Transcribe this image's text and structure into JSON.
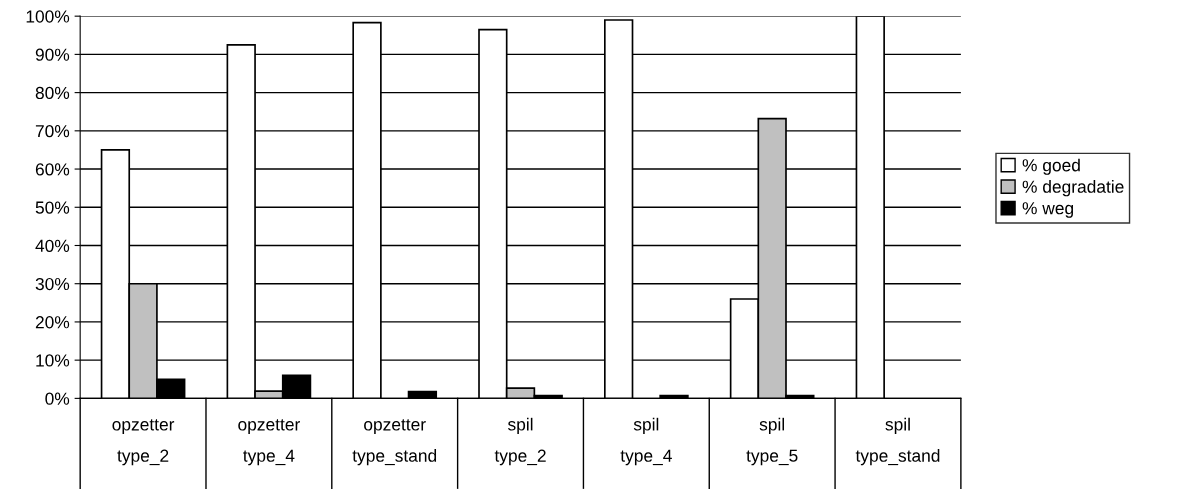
{
  "chart_data": {
    "type": "bar",
    "categories": [
      "opzetter\ntype_2",
      "opzetter\ntype_4",
      "opzetter\ntype_stand",
      "spil\ntype_2",
      "spil\ntype_4",
      "spil\ntype_5",
      "spil\ntype_stand"
    ],
    "series": [
      {
        "name": "% goed",
        "color": "#ffffff",
        "values": [
          65,
          92.5,
          98.3,
          96.5,
          99,
          26,
          100
        ]
      },
      {
        "name": "% degradatie",
        "color": "#c0c0c0",
        "values": [
          30,
          1.9,
          null,
          2.7,
          null,
          73.2,
          null
        ]
      },
      {
        "name": "% weg",
        "color": "#000000",
        "values": [
          5,
          6,
          1.8,
          0.7,
          0.7,
          0.7,
          null
        ]
      }
    ],
    "ylim": [
      0,
      100
    ],
    "yticks": [
      {
        "value": 0,
        "label": "0%"
      },
      {
        "value": 10,
        "label": "10%"
      },
      {
        "value": 20,
        "label": "20%"
      },
      {
        "value": 30,
        "label": "30%"
      },
      {
        "value": 40,
        "label": "40%"
      },
      {
        "value": 50,
        "label": "50%"
      },
      {
        "value": 60,
        "label": "60%"
      },
      {
        "value": 70,
        "label": "70%"
      },
      {
        "value": 80,
        "label": "80%"
      },
      {
        "value": 90,
        "label": "90%"
      },
      {
        "value": 100,
        "label": "100%"
      }
    ],
    "grid": "y",
    "legend": "right"
  }
}
